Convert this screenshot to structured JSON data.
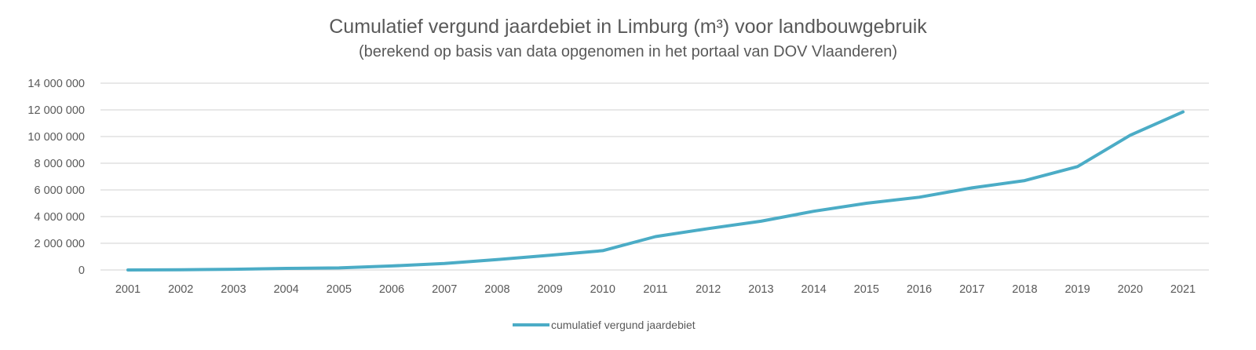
{
  "chart_data": {
    "type": "line",
    "title": "Cumulatief vergund jaardebiet in Limburg (m³) voor landbouwgebruik",
    "subtitle": "(berekend op basis van data opgenomen in het portaal van DOV Vlaanderen)",
    "xlabel": "",
    "ylabel": "",
    "categories": [
      "2001",
      "2002",
      "2003",
      "2004",
      "2005",
      "2006",
      "2007",
      "2008",
      "2009",
      "2010",
      "2011",
      "2012",
      "2013",
      "2014",
      "2015",
      "2016",
      "2017",
      "2018",
      "2019",
      "2020",
      "2021"
    ],
    "series": [
      {
        "name": "cumulatief vergund jaardebiet",
        "color": "#4bacc6",
        "values": [
          0,
          20000,
          50000,
          120000,
          150000,
          300000,
          480000,
          780000,
          1100000,
          1450000,
          2500000,
          3100000,
          3650000,
          4400000,
          5000000,
          5450000,
          6150000,
          6700000,
          7750000,
          10100000,
          11850000
        ]
      }
    ],
    "ylim": [
      0,
      14000000
    ],
    "yticks": [
      0,
      2000000,
      4000000,
      6000000,
      8000000,
      10000000,
      12000000,
      14000000
    ],
    "ytick_labels": [
      "0",
      "2 000 000",
      "4 000 000",
      "6 000 000",
      "8 000 000",
      "10 000 000",
      "12 000 000",
      "14 000 000"
    ],
    "grid": true,
    "gridline_color": "#d9d9d9",
    "legend_position": "bottom"
  }
}
